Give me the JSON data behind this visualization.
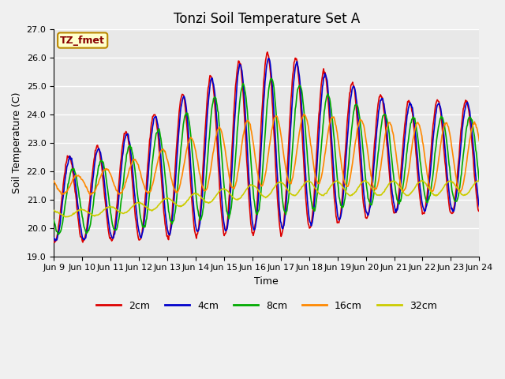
{
  "title": "Tonzi Soil Temperature Set A",
  "xlabel": "Time",
  "ylabel": "Soil Temperature (C)",
  "ylim": [
    19.0,
    27.0
  ],
  "yticks": [
    19.0,
    20.0,
    21.0,
    22.0,
    23.0,
    24.0,
    25.0,
    26.0,
    27.0
  ],
  "xtick_start": 9,
  "xtick_end": 24,
  "colors": {
    "2cm": "#dd0000",
    "4cm": "#0000cc",
    "8cm": "#00aa00",
    "16cm": "#ff8800",
    "32cm": "#cccc00"
  },
  "legend_labels": [
    "2cm",
    "4cm",
    "8cm",
    "16cm",
    "32cm"
  ],
  "annotation_text": "TZ_fmet",
  "annotation_bg": "#ffffcc",
  "annotation_border": "#bb8800",
  "plot_bg": "#e8e8e8",
  "fig_bg": "#f0f0f0",
  "grid_color": "#ffffff",
  "title_fontsize": 12,
  "axis_label_fontsize": 9,
  "tick_label_fontsize": 8,
  "legend_fontsize": 9,
  "n_points": 720,
  "t_start": 9.0,
  "t_end": 24.0,
  "period": 1.0
}
